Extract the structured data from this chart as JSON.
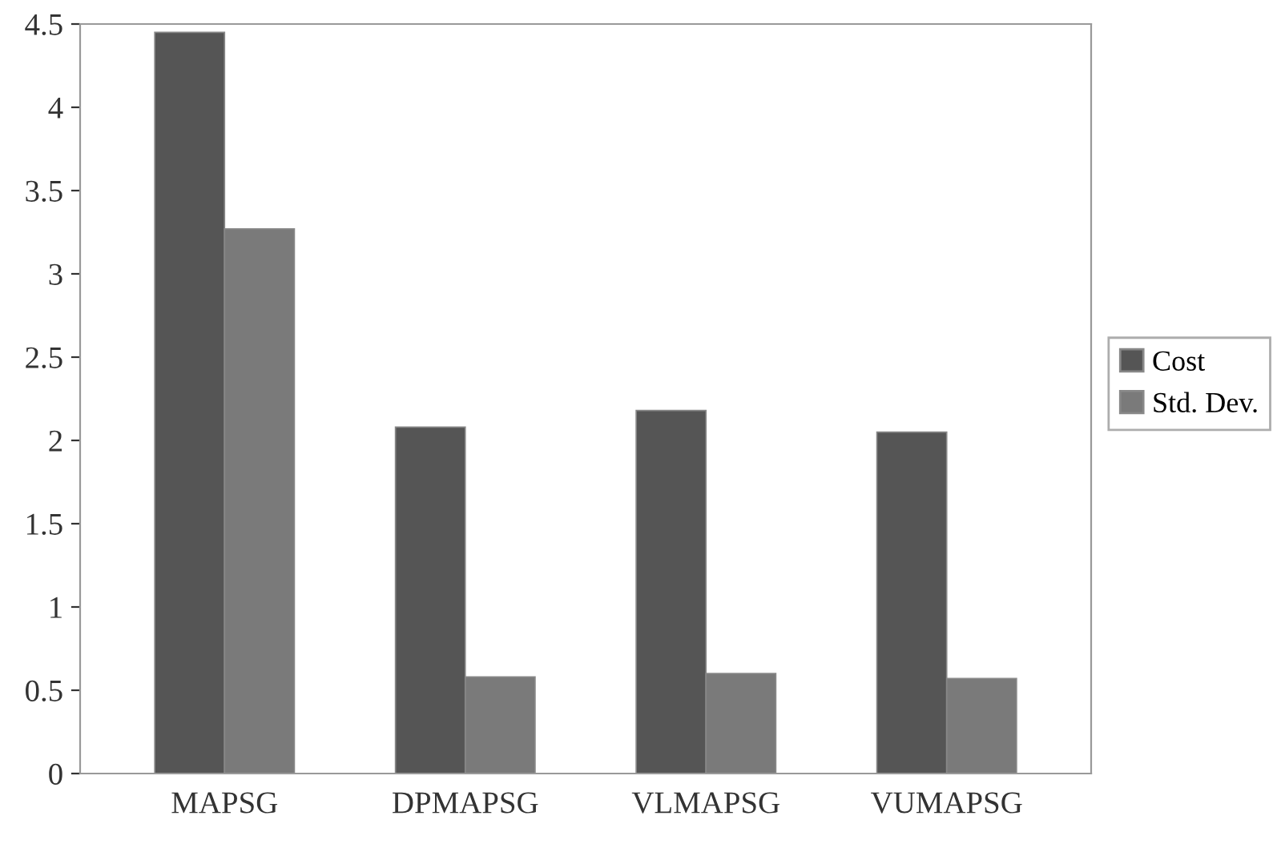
{
  "chart_data": {
    "type": "bar",
    "categories": [
      "MAPSG",
      "DPMAPSG",
      "VLMAPSG",
      "VUMAPSG"
    ],
    "series": [
      {
        "name": "Cost",
        "color": "#555555",
        "values": [
          4.45,
          2.08,
          2.18,
          2.05
        ]
      },
      {
        "name": "Std. Dev.",
        "color": "#7a7a7a",
        "values": [
          3.27,
          0.58,
          0.6,
          0.57
        ]
      }
    ],
    "ylim": [
      0,
      4.5
    ],
    "yticks": [
      0,
      0.5,
      1,
      1.5,
      2,
      2.5,
      3,
      3.5,
      4,
      4.5
    ],
    "legend": "right"
  }
}
